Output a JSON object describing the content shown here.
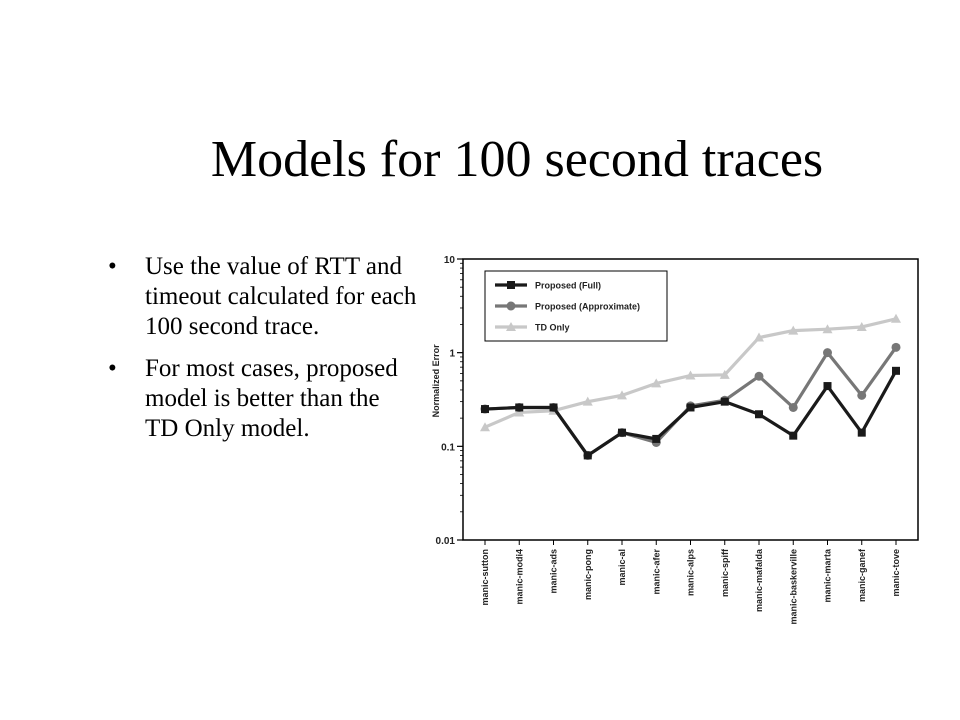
{
  "slide": {
    "title": "Models for 100 second traces",
    "bullets": [
      "Use the value of RTT and timeout calculated for each 100 second trace.",
      "For most cases, proposed model is better than the TD Only model."
    ],
    "bullet_glyph": "•"
  },
  "chart_data": {
    "type": "line",
    "ylabel": "Normalized Error",
    "xlabel": "",
    "y_scale": "log",
    "ylim": [
      0.01,
      10
    ],
    "yticks": [
      {
        "value": 10,
        "label": "10"
      },
      {
        "value": 1,
        "label": "1"
      },
      {
        "value": 0.1,
        "label": "0.1"
      },
      {
        "value": 0.01,
        "label": "0.01"
      }
    ],
    "grid": false,
    "legend_position": "top-left",
    "categories": [
      "manic-sutton",
      "manic-modi4",
      "manic-ads",
      "manic-pong",
      "manic-al",
      "manic-afer",
      "manic-alps",
      "manic-spiff",
      "manic-mafalda",
      "manic-baskerville",
      "manic-marta",
      "manic-ganef",
      "manic-tove"
    ],
    "series": [
      {
        "name": "Proposed (Full)",
        "marker": "square",
        "color": "#1a1a1a",
        "values": [
          0.25,
          0.26,
          0.26,
          0.08,
          0.14,
          0.12,
          0.26,
          0.3,
          0.22,
          0.13,
          0.44,
          0.14,
          0.64
        ]
      },
      {
        "name": "Proposed (Approximate)",
        "marker": "circle",
        "color": "#777777",
        "values": [
          0.25,
          0.26,
          0.26,
          0.08,
          0.14,
          0.11,
          0.27,
          0.31,
          0.56,
          0.26,
          1.0,
          0.35,
          1.14
        ]
      },
      {
        "name": "TD Only",
        "marker": "triangle",
        "color": "#c8c8c8",
        "values": [
          0.16,
          0.23,
          0.24,
          0.3,
          0.35,
          0.47,
          0.57,
          0.58,
          1.45,
          1.72,
          1.78,
          1.88,
          2.3
        ]
      }
    ]
  }
}
